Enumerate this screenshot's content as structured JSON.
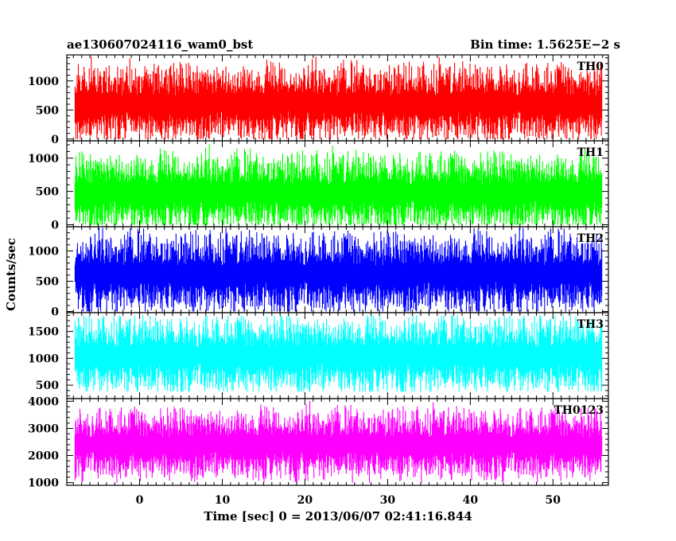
{
  "chart_data": {
    "type": "line",
    "title": "ae130607024116_wam0_bst",
    "bin_time_label": "Bin time: 1.5625E−2 s",
    "xlabel": "Time [sec] 0 = 2013/06/07 02:41:16.844",
    "ylabel": "Counts/sec",
    "xlim": [
      -8.8,
      56.7
    ],
    "data_range": [
      -7.8,
      55.9
    ],
    "x_ticks": [
      "0",
      "10",
      "20",
      "30",
      "40",
      "50"
    ],
    "x_tick_values": [
      0,
      10,
      20,
      30,
      40,
      50
    ],
    "grid": false,
    "panels": [
      {
        "name": "TH0",
        "color": "#ff0000",
        "ylim": [
          -30,
          1450
        ],
        "y_ticks": [
          "0",
          "500",
          "1000"
        ],
        "y_tick_values": [
          0,
          500,
          1000
        ],
        "band": {
          "mean": 610,
          "spread": 215,
          "min": 0,
          "max": 1420
        }
      },
      {
        "name": "TH1",
        "color": "#00ff00",
        "ylim": [
          -30,
          1260
        ],
        "y_ticks": [
          "0",
          "500",
          "1000"
        ],
        "y_tick_values": [
          0,
          500,
          1000
        ],
        "band": {
          "mean": 480,
          "spread": 190,
          "min": 0,
          "max": 1230
        }
      },
      {
        "name": "TH2",
        "color": "#0000ff",
        "ylim": [
          -20,
          1400
        ],
        "y_ticks": [
          "0",
          "500",
          "1000"
        ],
        "y_tick_values": [
          0,
          500,
          1000
        ],
        "band": {
          "mean": 620,
          "spread": 215,
          "min": 0,
          "max": 1380
        }
      },
      {
        "name": "TH3",
        "color": "#00ffff",
        "ylim": [
          250,
          1850
        ],
        "y_ticks": [
          "500",
          "1000",
          "1500"
        ],
        "y_tick_values": [
          500,
          1000,
          1500
        ],
        "band": {
          "mean": 1050,
          "spread": 230,
          "min": 380,
          "max": 1800
        }
      },
      {
        "name": "TH0123",
        "color": "#ff00ff",
        "ylim": [
          900,
          4100
        ],
        "y_ticks": [
          "1000",
          "2000",
          "3000",
          "4000"
        ],
        "y_tick_values": [
          1000,
          2000,
          3000,
          4000
        ],
        "band": {
          "mean": 2400,
          "spread": 420,
          "min": 1000,
          "max": 4050
        }
      }
    ]
  }
}
